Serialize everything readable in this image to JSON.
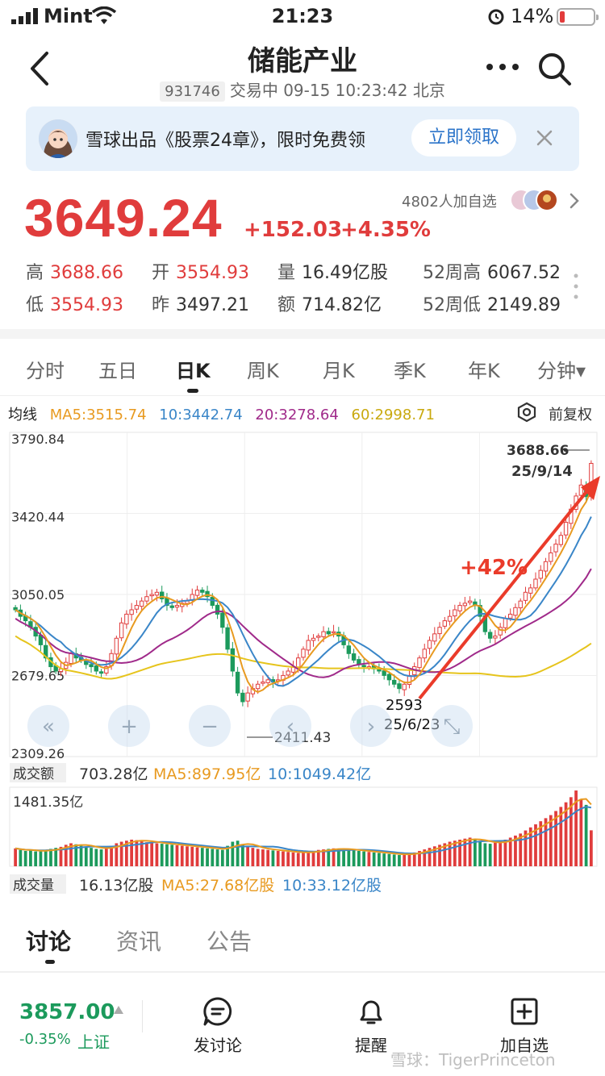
{
  "status_bar": {
    "carrier": "Mint",
    "time": "21:23",
    "battery": "14%"
  },
  "header": {
    "title": "储能产业",
    "code": "931746",
    "status": "交易中 09-15 10:23:42 北京"
  },
  "banner": {
    "text": "雪球出品《股票24章》，限时免费领",
    "button": "立即领取"
  },
  "quote": {
    "price": "3649.24",
    "change": "+152.03",
    "change_pct": "+4.35%",
    "followers": "4802人加自选"
  },
  "stats": {
    "high_label": "高",
    "high": "3688.66",
    "open_label": "开",
    "open": "3554.93",
    "volume_label": "量",
    "volume": "16.49亿股",
    "w52_high_label": "52周高",
    "w52_high": "6067.52",
    "low_label": "低",
    "low": "3554.93",
    "prev_label": "昨",
    "prev": "3497.21",
    "amount_label": "额",
    "amount": "714.82亿",
    "w52_low_label": "52周低",
    "w52_low": "2149.89"
  },
  "tabs": [
    "分时",
    "五日",
    "日K",
    "周K",
    "月K",
    "季K",
    "年K",
    "分钟▾"
  ],
  "active_tab": "日K",
  "ma": {
    "label": "均线",
    "ma5": "MA5:3515.74",
    "ma10": "10:3442.74",
    "ma20": "20:3278.64",
    "ma60": "60:2998.71",
    "adjust": "前复权"
  },
  "colors": {
    "up": "#e03c3c",
    "down": "#1c9a5c",
    "ma5": "#e89a20",
    "ma10": "#3a86c8",
    "ma20": "#a02a8a",
    "ma60": "#e6c41c",
    "annotation": "#ea3b2a"
  },
  "chart_data": {
    "type": "candlestick",
    "y_ticks": [
      "3790.84",
      "3420.44",
      "3050.05",
      "2679.65",
      "2309.26"
    ],
    "ylim": [
      2309.26,
      3790.84
    ],
    "high_marker": {
      "value": "3688.66",
      "date": "25/9/14"
    },
    "low_marker": {
      "value": "2411.43"
    },
    "annotation": {
      "label": "+42%",
      "from_value": "2593",
      "from_date": "25/6/23"
    },
    "close": [
      2980,
      2950,
      2930,
      2900,
      2860,
      2820,
      2760,
      2720,
      2700,
      2710,
      2740,
      2780,
      2760,
      2750,
      2730,
      2720,
      2700,
      2690,
      2720,
      2780,
      2850,
      2920,
      2960,
      2980,
      3000,
      3020,
      3040,
      3050,
      3060,
      3030,
      3000,
      2990,
      3000,
      3010,
      3020,
      3050,
      3070,
      3060,
      3040,
      3000,
      2960,
      2900,
      2800,
      2700,
      2600,
      2560,
      2600,
      2620,
      2640,
      2650,
      2660,
      2650,
      2660,
      2680,
      2700,
      2720,
      2760,
      2800,
      2840,
      2850,
      2860,
      2880,
      2870,
      2880,
      2860,
      2820,
      2780,
      2750,
      2730,
      2720,
      2720,
      2710,
      2700,
      2680,
      2660,
      2640,
      2620,
      2640,
      2680,
      2720,
      2760,
      2800,
      2840,
      2870,
      2900,
      2930,
      2950,
      2980,
      3000,
      3010,
      3020,
      3000,
      2950,
      2880,
      2850,
      2860,
      2900,
      2940,
      2960,
      2990,
      3020,
      3060,
      3080,
      3120,
      3160,
      3200,
      3240,
      3280,
      3320,
      3380,
      3440,
      3500,
      3550,
      3497,
      3649
    ],
    "volume_panel": {
      "label": "成交额",
      "value": "703.28亿",
      "ma5": "MA5:897.95亿",
      "ma10": "10:1049.42亿",
      "max": "1481.35亿",
      "values": [
        350,
        320,
        300,
        310,
        290,
        300,
        320,
        340,
        360,
        380,
        420,
        450,
        430,
        400,
        380,
        360,
        340,
        330,
        360,
        400,
        450,
        480,
        500,
        520,
        510,
        490,
        470,
        460,
        450,
        440,
        430,
        420,
        410,
        400,
        390,
        380,
        370,
        360,
        350,
        340,
        330,
        320,
        400,
        480,
        500,
        420,
        380,
        360,
        340,
        330,
        320,
        310,
        300,
        290,
        280,
        270,
        260,
        270,
        280,
        300,
        320,
        330,
        340,
        350,
        340,
        330,
        320,
        310,
        300,
        290,
        280,
        270,
        260,
        250,
        240,
        230,
        220,
        230,
        250,
        270,
        300,
        330,
        360,
        390,
        420,
        450,
        480,
        500,
        520,
        540,
        560,
        520,
        480,
        450,
        440,
        460,
        490,
        520,
        560,
        600,
        640,
        700,
        760,
        820,
        880,
        940,
        1000,
        1080,
        1160,
        1250,
        1350,
        1481,
        1300,
        1200,
        703
      ]
    },
    "volume2_panel": {
      "label": "成交量",
      "value": "16.13亿股",
      "ma5": "MA5:27.68亿股",
      "ma10": "10:33.12亿股"
    }
  },
  "bottom": {
    "tabs": [
      "讨论",
      "资讯",
      "公告"
    ],
    "active_tab": "讨论",
    "index_price": "3857.00",
    "index_change": "-0.35%",
    "index_name": "上证",
    "buttons": [
      "发讨论",
      "提醒",
      "加自选"
    ],
    "watermark": "雪球：TigerPrinceton"
  }
}
